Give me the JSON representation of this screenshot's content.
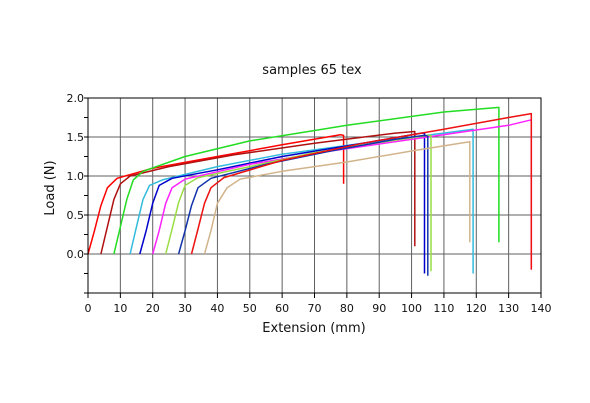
{
  "chart_data": {
    "type": "line",
    "title": "samples 65 tex",
    "xlabel": "Extension  (mm)",
    "ylabel": "Load  (N)",
    "xlim": [
      0,
      140
    ],
    "ylim": [
      -0.5,
      2.0
    ],
    "xticks": [
      "0",
      "10",
      "20",
      "30",
      "40",
      "50",
      "60",
      "70",
      "80",
      "90",
      "100",
      "110",
      "120",
      "130",
      "140"
    ],
    "yticks": [
      "0.0",
      "0.5",
      "1.0",
      "1.5",
      "2.0"
    ],
    "grid": true,
    "series": [
      {
        "color": "#ff0000",
        "points": [
          [
            0,
            0
          ],
          [
            2,
            0.3
          ],
          [
            4,
            0.62
          ],
          [
            6,
            0.85
          ],
          [
            9,
            0.97
          ],
          [
            20,
            1.1
          ],
          [
            40,
            1.25
          ],
          [
            60,
            1.4
          ],
          [
            78,
            1.53
          ],
          [
            79,
            1.52
          ],
          [
            79,
            0.9
          ]
        ]
      },
      {
        "color": "#b01010",
        "points": [
          [
            4,
            0
          ],
          [
            6,
            0.35
          ],
          [
            8,
            0.7
          ],
          [
            10,
            0.9
          ],
          [
            13,
            1.0
          ],
          [
            25,
            1.12
          ],
          [
            45,
            1.27
          ],
          [
            70,
            1.42
          ],
          [
            95,
            1.55
          ],
          [
            101,
            1.57
          ],
          [
            101,
            0.1
          ]
        ]
      },
      {
        "color": "#22dd22",
        "points": [
          [
            8,
            0
          ],
          [
            10,
            0.35
          ],
          [
            12,
            0.7
          ],
          [
            14,
            0.95
          ],
          [
            17,
            1.06
          ],
          [
            30,
            1.25
          ],
          [
            50,
            1.45
          ],
          [
            80,
            1.65
          ],
          [
            110,
            1.82
          ],
          [
            127,
            1.88
          ],
          [
            127,
            0.15
          ]
        ]
      },
      {
        "color": "#33bbdd",
        "points": [
          [
            13,
            0
          ],
          [
            15,
            0.35
          ],
          [
            17,
            0.7
          ],
          [
            19,
            0.88
          ],
          [
            23,
            0.95
          ],
          [
            40,
            1.12
          ],
          [
            60,
            1.28
          ],
          [
            85,
            1.42
          ],
          [
            110,
            1.55
          ],
          [
            119,
            1.6
          ],
          [
            119,
            -0.25
          ]
        ]
      },
      {
        "color": "#0000cc",
        "points": [
          [
            16,
            0
          ],
          [
            18,
            0.3
          ],
          [
            20,
            0.65
          ],
          [
            22,
            0.88
          ],
          [
            26,
            0.97
          ],
          [
            40,
            1.08
          ],
          [
            60,
            1.25
          ],
          [
            85,
            1.42
          ],
          [
            103,
            1.55
          ],
          [
            104,
            1.55
          ],
          [
            104,
            -0.25
          ]
        ]
      },
      {
        "color": "#ff22ff",
        "points": [
          [
            20,
            0
          ],
          [
            22,
            0.3
          ],
          [
            24,
            0.65
          ],
          [
            26,
            0.85
          ],
          [
            30,
            0.96
          ],
          [
            50,
            1.15
          ],
          [
            75,
            1.32
          ],
          [
            105,
            1.5
          ],
          [
            130,
            1.65
          ],
          [
            137,
            1.72
          ],
          [
            137,
            -0.2
          ]
        ]
      },
      {
        "color": "#99dd44",
        "points": [
          [
            24,
            0
          ],
          [
            26,
            0.32
          ],
          [
            28,
            0.66
          ],
          [
            30,
            0.88
          ],
          [
            34,
            0.98
          ],
          [
            50,
            1.12
          ],
          [
            70,
            1.3
          ],
          [
            90,
            1.43
          ],
          [
            105,
            1.52
          ],
          [
            106,
            1.52
          ],
          [
            106,
            -0.22
          ]
        ]
      },
      {
        "color": "#1133aa",
        "points": [
          [
            28,
            0
          ],
          [
            30,
            0.3
          ],
          [
            32,
            0.62
          ],
          [
            34,
            0.85
          ],
          [
            38,
            0.97
          ],
          [
            55,
            1.15
          ],
          [
            75,
            1.32
          ],
          [
            95,
            1.47
          ],
          [
            104,
            1.52
          ],
          [
            105,
            1.51
          ],
          [
            105,
            -0.28
          ]
        ]
      },
      {
        "color": "#ee1111",
        "points": [
          [
            32,
            0
          ],
          [
            34,
            0.32
          ],
          [
            36,
            0.65
          ],
          [
            38,
            0.85
          ],
          [
            42,
            0.98
          ],
          [
            60,
            1.2
          ],
          [
            85,
            1.42
          ],
          [
            110,
            1.6
          ],
          [
            130,
            1.75
          ],
          [
            137,
            1.8
          ],
          [
            137,
            -0.2
          ]
        ]
      },
      {
        "color": "#d2b48c",
        "points": [
          [
            36,
            0
          ],
          [
            38,
            0.3
          ],
          [
            40,
            0.65
          ],
          [
            43,
            0.85
          ],
          [
            47,
            0.96
          ],
          [
            60,
            1.06
          ],
          [
            80,
            1.18
          ],
          [
            100,
            1.32
          ],
          [
            115,
            1.42
          ],
          [
            118,
            1.44
          ],
          [
            118,
            0.15
          ]
        ]
      }
    ]
  }
}
